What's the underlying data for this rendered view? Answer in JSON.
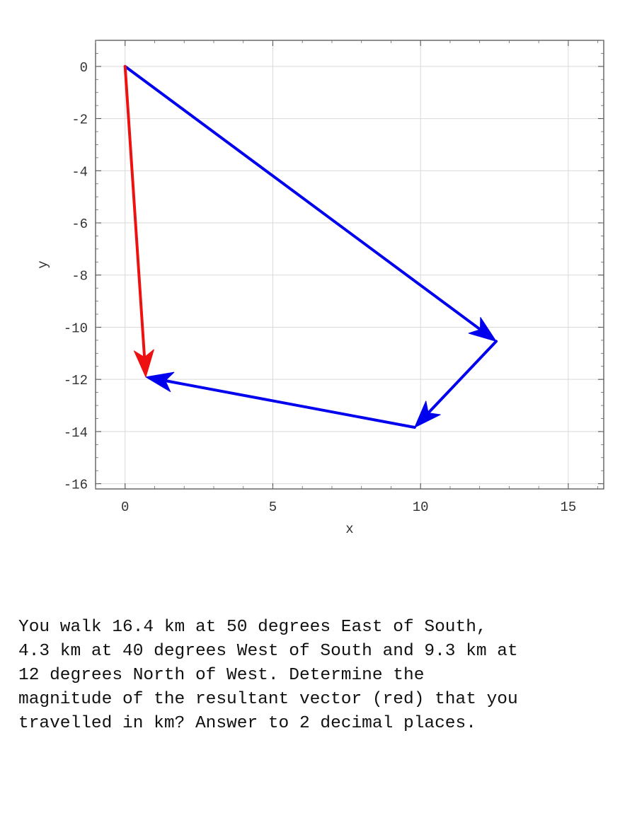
{
  "chart_data": {
    "type": "vector-diagram",
    "title": "",
    "xlabel": "x",
    "ylabel": "y",
    "xlim": [
      -1,
      16.2
    ],
    "ylim": [
      -16.2,
      1
    ],
    "x_ticks": [
      0,
      5,
      10,
      15
    ],
    "y_ticks": [
      0,
      -2,
      -4,
      -6,
      -8,
      -10,
      -12,
      -14,
      -16
    ],
    "grid": true,
    "vectors": [
      {
        "kind": "component",
        "from": [
          0,
          0
        ],
        "to": [
          12.56,
          -10.54
        ],
        "color": "#0000ee"
      },
      {
        "kind": "component",
        "from": [
          12.56,
          -10.54
        ],
        "to": [
          9.8,
          -13.84
        ],
        "color": "#0000ee"
      },
      {
        "kind": "component",
        "from": [
          9.8,
          -13.84
        ],
        "to": [
          0.7,
          -11.91
        ],
        "color": "#0000ee"
      },
      {
        "kind": "resultant",
        "from": [
          0,
          0
        ],
        "to": [
          0.7,
          -11.91
        ],
        "color": "#ee1111"
      }
    ]
  },
  "question": {
    "text": "You walk 16.4 km at 50 degrees East of South,\n4.3 km at 40 degrees West of South and 9.3 km at\n12 degrees North of West.  Determine the\nmagnitude of the resultant vector (red) that you\ntravelled in km? Answer to 2 decimal places."
  }
}
